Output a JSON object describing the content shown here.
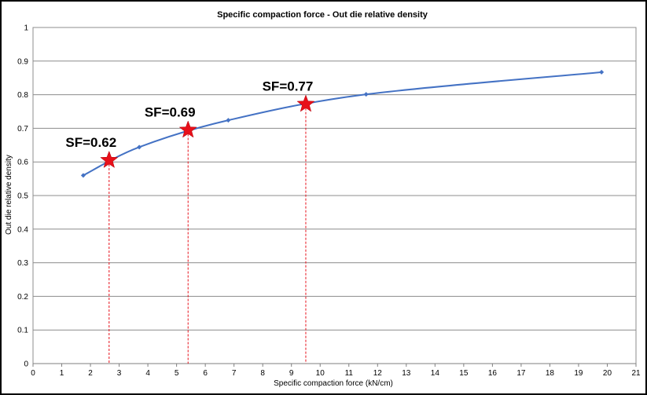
{
  "chart_data": {
    "type": "line",
    "title": "Specific compaction force - Out die relative density",
    "xlabel": "Specific compaction force (kN/cm)",
    "ylabel": "Out die relative density",
    "xlim": [
      0,
      21
    ],
    "ylim": [
      0,
      1
    ],
    "xticks": [
      0,
      1,
      2,
      3,
      4,
      5,
      6,
      7,
      8,
      9,
      10,
      11,
      12,
      13,
      14,
      15,
      16,
      17,
      18,
      19,
      20,
      21
    ],
    "yticks": [
      0,
      0.1,
      0.2,
      0.3,
      0.4,
      0.5,
      0.6,
      0.7,
      0.8,
      0.9,
      1
    ],
    "grid": "horizontal",
    "legend": "none",
    "series": [
      {
        "color": "#4472C4",
        "points": [
          {
            "x": 1.75,
            "y": 0.56
          },
          {
            "x": 3.7,
            "y": 0.644
          },
          {
            "x": 6.8,
            "y": 0.724
          },
          {
            "x": 11.6,
            "y": 0.801
          },
          {
            "x": 19.8,
            "y": 0.867
          }
        ]
      }
    ],
    "annotations": [
      {
        "label": "SF=0.62",
        "x": 2.65,
        "y": 0.605,
        "marker": "star",
        "color": "#E8101A"
      },
      {
        "label": "SF=0.69",
        "x": 5.4,
        "y": 0.695,
        "marker": "star",
        "color": "#E8101A"
      },
      {
        "label": "SF=0.77",
        "x": 9.5,
        "y": 0.772,
        "marker": "star",
        "color": "#E8101A"
      }
    ]
  }
}
